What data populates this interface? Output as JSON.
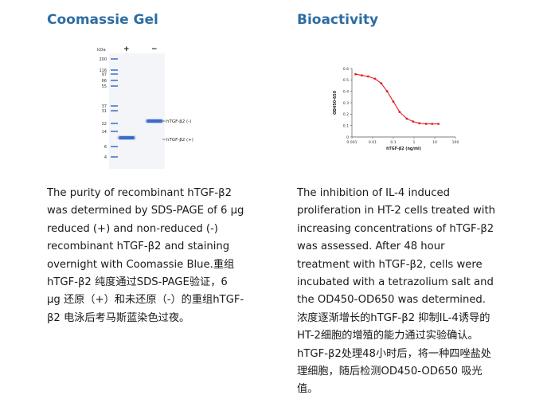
{
  "left": {
    "title": "Coomassie Gel",
    "gel": {
      "kda_label": "kDa",
      "lane_plus": "+",
      "lane_minus": "−",
      "markers": [
        "200",
        "116",
        "97",
        "66",
        "55",
        "37",
        "31",
        "22",
        "14",
        "6",
        "4"
      ],
      "band_minus_label": "hTGF-β2 (-)",
      "band_plus_label": "hTGF-β2 (+)"
    },
    "description_lines": [
      "The purity of recombinant hTGF-β2",
      "was determined by SDS-PAGE of 6 μg",
      "reduced (+) and non-reduced (-)",
      "recombinant hTGF-β2 and staining",
      "overnight with Coomassie Blue.重组",
      "hTGF-β2 纯度通过SDS-PAGE验证，6",
      "μg 还原（+）和未还原（-）的重组hTGF-",
      "β2 电泳后考马斯蓝染色过夜。"
    ]
  },
  "right": {
    "title": "Bioactivity",
    "description_lines": [
      "The inhibition of IL-4 induced",
      "proliferation in HT-2 cells treated with",
      "increasing concentrations of hTGF-β2",
      "was assessed. After 48 hour",
      "treatment with hTGF-β2, cells were",
      "incubated with a tetrazolium salt and",
      "the OD450-OD650 was determined.",
      "浓度逐渐增长的hTGF-β2 抑制IL-4诱导的",
      "HT-2细胞的增殖的能力通过实验确认。",
      "hTGF-β2处理48小时后，将一种四唑盐处",
      "理细胞，随后检测OD450-OD650 吸光",
      "值。"
    ]
  },
  "chart_data": {
    "type": "scatter",
    "title": "",
    "xlabel": "hTGF-β2 (ng/ml)",
    "ylabel": "OD450-650",
    "xscale": "log",
    "xlim": [
      0.001,
      100
    ],
    "ylim": [
      0,
      0.6
    ],
    "xticks": [
      "0.001",
      "0.01",
      "0.1",
      "1",
      "10",
      "100"
    ],
    "yticks": [
      "0",
      "0.1",
      "0.2",
      "0.3",
      "0.4",
      "0.5",
      "0.6"
    ],
    "x": [
      0.0015,
      0.003,
      0.006,
      0.013,
      0.026,
      0.05,
      0.1,
      0.2,
      0.45,
      0.9,
      1.8,
      3.8,
      7.5,
      15
    ],
    "y": [
      0.55,
      0.54,
      0.53,
      0.51,
      0.47,
      0.4,
      0.31,
      0.22,
      0.16,
      0.135,
      0.12,
      0.115,
      0.115,
      0.115
    ],
    "color": "#e32026"
  }
}
